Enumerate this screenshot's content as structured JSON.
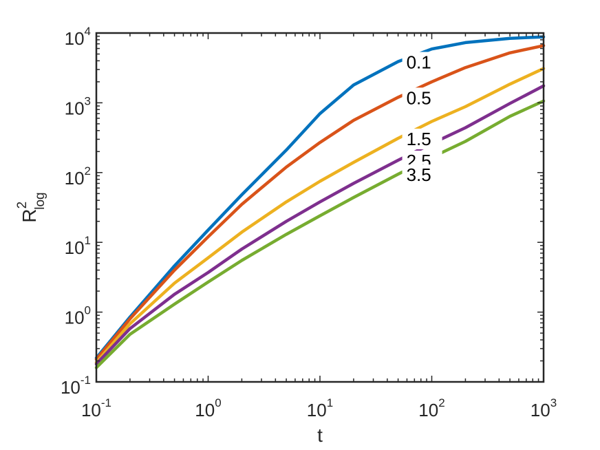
{
  "chart_data": {
    "type": "line",
    "title": "",
    "xlabel": "t",
    "ylabel": {
      "base": "R",
      "superscript": "2",
      "subscript": "log"
    },
    "x_scale": "log",
    "y_scale": "log",
    "xlim": [
      0.1,
      1000
    ],
    "ylim": [
      0.1,
      10000
    ],
    "grid": false,
    "x_ticks": [
      {
        "value": 0.1,
        "base": "10",
        "exp": "-1"
      },
      {
        "value": 1,
        "base": "10",
        "exp": "0"
      },
      {
        "value": 10,
        "base": "10",
        "exp": "1"
      },
      {
        "value": 100,
        "base": "10",
        "exp": "2"
      },
      {
        "value": 1000,
        "base": "10",
        "exp": "3"
      }
    ],
    "y_ticks": [
      {
        "value": 0.1,
        "base": "10",
        "exp": "-1"
      },
      {
        "value": 1,
        "base": "10",
        "exp": "0"
      },
      {
        "value": 10,
        "base": "10",
        "exp": "1"
      },
      {
        "value": 100,
        "base": "10",
        "exp": "2"
      },
      {
        "value": 1000,
        "base": "10",
        "exp": "3"
      },
      {
        "value": 10000,
        "base": "10",
        "exp": "4"
      }
    ],
    "x": [
      0.1,
      0.2,
      0.5,
      1,
      2,
      5,
      10,
      20,
      50,
      100,
      200,
      500,
      1000
    ],
    "series": [
      {
        "name": "0.1",
        "color": "#0072BD",
        "values": [
          0.22,
          0.85,
          4.6,
          15,
          48,
          210,
          700,
          1800,
          3900,
          5900,
          7300,
          8400,
          8800
        ]
      },
      {
        "name": "0.5",
        "color": "#D95319",
        "values": [
          0.21,
          0.8,
          4.0,
          12,
          35,
          120,
          270,
          560,
          1200,
          2000,
          3200,
          5200,
          6600
        ]
      },
      {
        "name": "1.5",
        "color": "#EDB120",
        "values": [
          0.19,
          0.68,
          2.6,
          6,
          14,
          38,
          75,
          140,
          310,
          540,
          880,
          1850,
          3100
        ]
      },
      {
        "name": "2.5",
        "color": "#7E2F8E",
        "values": [
          0.18,
          0.58,
          1.8,
          3.7,
          8,
          20,
          38,
          70,
          150,
          260,
          440,
          980,
          1750
        ]
      },
      {
        "name": "3.5",
        "color": "#77AC30",
        "values": [
          0.16,
          0.48,
          1.3,
          2.7,
          5.5,
          13,
          24,
          44,
          95,
          165,
          280,
          640,
          1060
        ]
      }
    ],
    "series_label_positions": [
      {
        "name": "0.1",
        "at_x": 50
      },
      {
        "name": "0.5",
        "at_x": 50
      },
      {
        "name": "1.5",
        "at_x": 50
      },
      {
        "name": "2.5",
        "at_x": 50
      },
      {
        "name": "3.5",
        "at_x": 50
      }
    ]
  }
}
